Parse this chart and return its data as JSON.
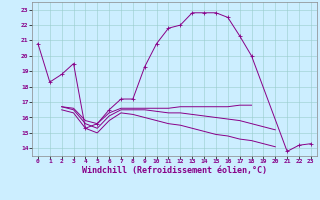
{
  "title": "",
  "xlabel": "Windchill (Refroidissement éolien,°C)",
  "ylabel": "",
  "background_color": "#cceeff",
  "line_color": "#880088",
  "grid_color": "#99cccc",
  "ylim": [
    13.5,
    23.5
  ],
  "xlim": [
    -0.5,
    23.5
  ],
  "yticks": [
    14,
    15,
    16,
    17,
    18,
    19,
    20,
    21,
    22,
    23
  ],
  "xticks": [
    0,
    1,
    2,
    3,
    4,
    5,
    6,
    7,
    8,
    9,
    10,
    11,
    12,
    13,
    14,
    15,
    16,
    17,
    18,
    19,
    20,
    21,
    22,
    23
  ],
  "line1_x": [
    0,
    1,
    2,
    3,
    4,
    5,
    6,
    7,
    8,
    9,
    10,
    11,
    12,
    13,
    14,
    15,
    16,
    17,
    18,
    21,
    22,
    23
  ],
  "line1_y": [
    20.8,
    18.3,
    18.8,
    19.5,
    15.3,
    15.6,
    16.5,
    17.2,
    17.2,
    19.3,
    20.8,
    21.8,
    22.0,
    22.8,
    22.8,
    22.8,
    22.5,
    21.3,
    20.0,
    13.8,
    14.2,
    14.3
  ],
  "line2_x": [
    2,
    3,
    4,
    5,
    6,
    7,
    8,
    9,
    10,
    11,
    12,
    13,
    14,
    15,
    16,
    17,
    18
  ],
  "line2_y": [
    16.7,
    16.6,
    15.8,
    15.6,
    16.3,
    16.6,
    16.6,
    16.6,
    16.6,
    16.6,
    16.7,
    16.7,
    16.7,
    16.7,
    16.7,
    16.8,
    16.8
  ],
  "line3_x": [
    2,
    3,
    4,
    5,
    6,
    7,
    8,
    9,
    10,
    11,
    12,
    13,
    14,
    15,
    16,
    17,
    18,
    19,
    20
  ],
  "line3_y": [
    16.7,
    16.5,
    15.6,
    15.3,
    16.1,
    16.5,
    16.5,
    16.5,
    16.4,
    16.3,
    16.3,
    16.2,
    16.1,
    16.0,
    15.9,
    15.8,
    15.6,
    15.4,
    15.2
  ],
  "line4_x": [
    2,
    3,
    4,
    5,
    6,
    7,
    8,
    9,
    10,
    11,
    12,
    13,
    14,
    15,
    16,
    17,
    18,
    19,
    20
  ],
  "line4_y": [
    16.5,
    16.3,
    15.3,
    15.0,
    15.8,
    16.3,
    16.2,
    16.0,
    15.8,
    15.6,
    15.5,
    15.3,
    15.1,
    14.9,
    14.8,
    14.6,
    14.5,
    14.3,
    14.1
  ],
  "figsize": [
    3.2,
    2.0
  ],
  "dpi": 100,
  "tick_fontsize": 4.5,
  "label_fontsize": 6.0,
  "lw": 0.7
}
